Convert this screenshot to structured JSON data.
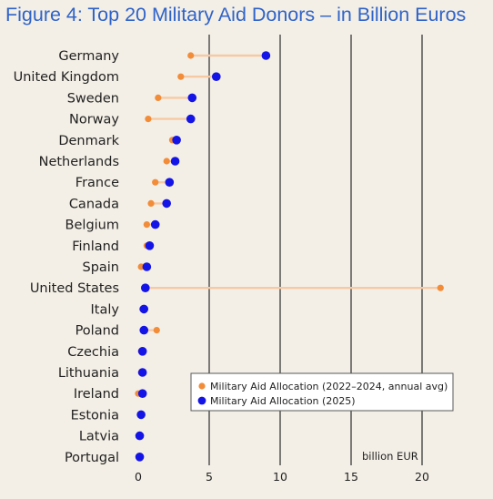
{
  "title": "Figure 4: Top 20 Military Aid Donors – in Billion Euros",
  "colors": {
    "background": "#f3efe6",
    "title": "#2f63c9",
    "series_annual": "#f28c38",
    "series_2025": "#1414e6",
    "connector": "#f7c9a3",
    "gridline": "#3a3a3a"
  },
  "chart_data": {
    "type": "dumbbell",
    "title": "Figure 4: Top 20 Military Aid Donors – in Billion Euros",
    "xlabel": "billion EUR",
    "xlim": [
      0,
      22
    ],
    "xticks": [
      0,
      5,
      10,
      15,
      20
    ],
    "grid": "vertical",
    "legend_position": "lower-right",
    "categories": [
      "Germany",
      "United Kingdom",
      "Sweden",
      "Norway",
      "Denmark",
      "Netherlands",
      "France",
      "Canada",
      "Belgium",
      "Finland",
      "Spain",
      "United States",
      "Italy",
      "Poland",
      "Czechia",
      "Lithuania",
      "Ireland",
      "Estonia",
      "Latvia",
      "Portugal"
    ],
    "series": [
      {
        "name": "Military Aid Allocation (2022–2024, annual avg)",
        "color": "#f28c38",
        "values": [
          3.7,
          3.0,
          1.4,
          0.7,
          2.4,
          2.0,
          1.2,
          0.9,
          0.6,
          0.6,
          0.2,
          21.3,
          0.3,
          1.3,
          0.2,
          0.2,
          0.0,
          0.2,
          0.1,
          0.1
        ]
      },
      {
        "name": "Military Aid Allocation (2025)",
        "color": "#1414e6",
        "values": [
          9.0,
          5.5,
          3.8,
          3.7,
          2.7,
          2.6,
          2.2,
          2.0,
          1.2,
          0.8,
          0.6,
          0.5,
          0.4,
          0.4,
          0.3,
          0.3,
          0.3,
          0.2,
          0.1,
          0.1
        ]
      }
    ]
  }
}
